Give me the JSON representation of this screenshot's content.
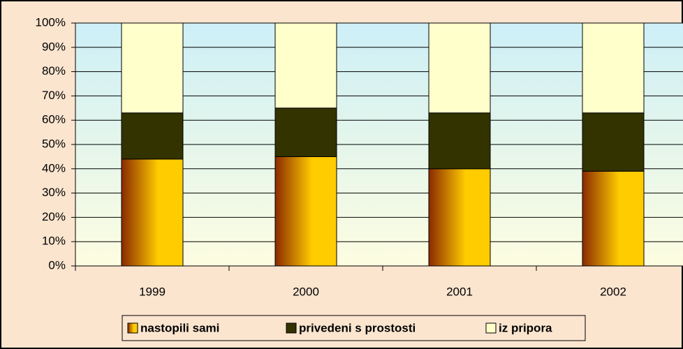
{
  "chart_data": {
    "type": "stacked-bar-100",
    "categories": [
      "1999",
      "2000",
      "2001",
      "2002"
    ],
    "series": [
      {
        "name": "nastopili sami",
        "color": "#ffcc00",
        "values": [
          44,
          45,
          40,
          39
        ]
      },
      {
        "name": "privedeni s prostosti",
        "color": "#333300",
        "values": [
          19,
          20,
          23,
          24
        ]
      },
      {
        "name": "iz pripora",
        "color": "#ffffcc",
        "values": [
          37,
          35,
          37,
          37
        ]
      }
    ],
    "ylim": [
      0,
      100
    ],
    "yticks": [
      {
        "value": 0,
        "label": "0%"
      },
      {
        "value": 10,
        "label": "10%"
      },
      {
        "value": 20,
        "label": "20%"
      },
      {
        "value": 30,
        "label": "30%"
      },
      {
        "value": 40,
        "label": "40%"
      },
      {
        "value": 50,
        "label": "50%"
      },
      {
        "value": 60,
        "label": "60%"
      },
      {
        "value": 70,
        "label": "70%"
      },
      {
        "value": 80,
        "label": "80%"
      },
      {
        "value": 90,
        "label": "90%"
      },
      {
        "value": 100,
        "label": "100%"
      }
    ],
    "grid": true,
    "legend": "bottom"
  }
}
